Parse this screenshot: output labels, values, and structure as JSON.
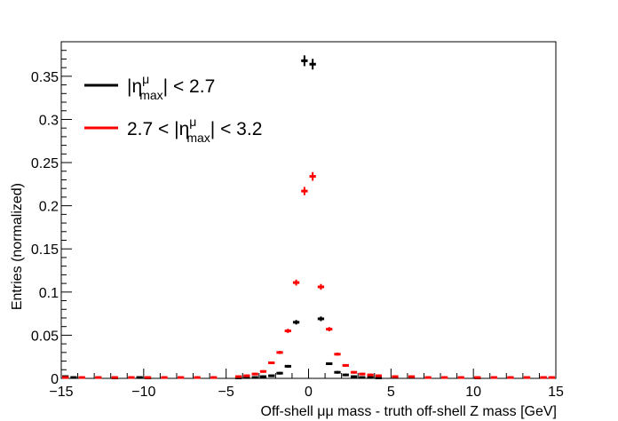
{
  "chart_data": {
    "type": "scatter",
    "title": "",
    "xlabel": "Off-shell μμ mass - truth off-shell Z mass [GeV]",
    "ylabel": "Entries (normalized)",
    "xlim": [
      -15,
      15
    ],
    "ylim": [
      0,
      0.39
    ],
    "x_ticks": [
      -15,
      -10,
      -5,
      0,
      5,
      10,
      15
    ],
    "y_ticks": [
      0,
      0.05,
      0.1,
      0.15,
      0.2,
      0.25,
      0.3,
      0.35
    ],
    "x_tick_labels": [
      "−15",
      "−10",
      "−5",
      "0",
      "5",
      "10",
      "15"
    ],
    "y_tick_labels": [
      "0",
      "0.05",
      "0.1",
      "0.15",
      "0.2",
      "0.25",
      "0.3",
      "0.35"
    ],
    "bin_width": 0.5,
    "grid": false,
    "legend_position": "top-left",
    "series": [
      {
        "name_prefix": "|η",
        "name_sup": "μ",
        "name_sub": "max",
        "name_suffix": "| < 2.7",
        "color": "#000000",
        "points": [
          [
            -14.75,
            0.002
          ],
          [
            -14.25,
            0.001
          ],
          [
            -11.75,
            0.0005
          ],
          [
            -10.25,
            0.001
          ],
          [
            -9.75,
            0.0005
          ],
          [
            -4.25,
            0.0005
          ],
          [
            -3.75,
            0.001
          ],
          [
            -3.25,
            0.001
          ],
          [
            -2.75,
            0.002
          ],
          [
            -2.25,
            0.003
          ],
          [
            -1.75,
            0.006
          ],
          [
            -1.25,
            0.014
          ],
          [
            -0.75,
            0.065
          ],
          [
            -0.25,
            0.368
          ],
          [
            0.25,
            0.364
          ],
          [
            0.75,
            0.069
          ],
          [
            1.25,
            0.017
          ],
          [
            1.75,
            0.007
          ],
          [
            2.25,
            0.004
          ],
          [
            2.75,
            0.002
          ],
          [
            3.25,
            0.001
          ],
          [
            3.75,
            0.001
          ],
          [
            4.25,
            0.0005
          ],
          [
            10.25,
            0.0005
          ],
          [
            14.25,
            0.001
          ]
        ]
      },
      {
        "name_prefix": "2.7 < |η",
        "name_sup": "μ",
        "name_sub": "max",
        "name_suffix": "| < 3.2",
        "color": "#ff0000",
        "points": [
          [
            -14.75,
            0.001
          ],
          [
            -13.75,
            0.001
          ],
          [
            -12.75,
            0.001
          ],
          [
            -11.75,
            0.001
          ],
          [
            -10.75,
            0.001
          ],
          [
            -9.75,
            0.001
          ],
          [
            -8.75,
            0.001
          ],
          [
            -7.75,
            0.001
          ],
          [
            -6.75,
            0.001
          ],
          [
            -5.75,
            0.001
          ],
          [
            -4.25,
            0.002
          ],
          [
            -3.75,
            0.003
          ],
          [
            -3.25,
            0.005
          ],
          [
            -2.75,
            0.008
          ],
          [
            -2.25,
            0.018
          ],
          [
            -1.75,
            0.03
          ],
          [
            -1.25,
            0.055
          ],
          [
            -0.75,
            0.111
          ],
          [
            -0.25,
            0.217
          ],
          [
            0.25,
            0.234
          ],
          [
            0.75,
            0.106
          ],
          [
            1.25,
            0.057
          ],
          [
            1.75,
            0.028
          ],
          [
            2.25,
            0.015
          ],
          [
            2.75,
            0.007
          ],
          [
            3.25,
            0.005
          ],
          [
            3.75,
            0.004
          ],
          [
            4.25,
            0.003
          ],
          [
            5.25,
            0.002
          ],
          [
            6.25,
            0.002
          ],
          [
            7.25,
            0.001
          ],
          [
            8.25,
            0.001
          ],
          [
            9.25,
            0.001
          ],
          [
            10.25,
            0.001
          ],
          [
            11.25,
            0.001
          ],
          [
            12.25,
            0.001
          ],
          [
            13.25,
            0.001
          ],
          [
            14.25,
            0.001
          ],
          [
            14.75,
            0.001
          ]
        ]
      }
    ]
  }
}
